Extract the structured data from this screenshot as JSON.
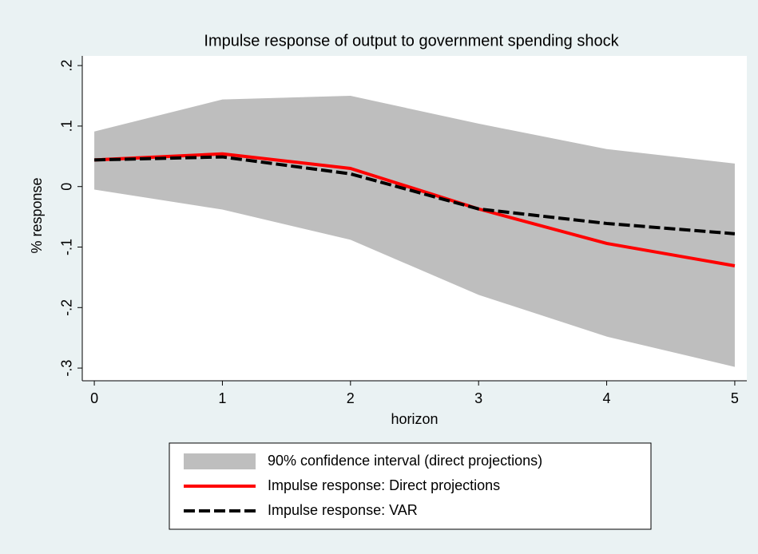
{
  "chart_data": {
    "type": "line",
    "title": "Impulse response of output to government spending shock",
    "x_label": "horizon",
    "y_label": "% response",
    "x": [
      0,
      1,
      2,
      3,
      4,
      5
    ],
    "series": [
      {
        "name": "90% confidence interval (direct projections)",
        "type": "band",
        "color": "#bebebe",
        "upper": [
          0.091,
          0.144,
          0.15,
          0.104,
          0.062,
          0.038
        ],
        "lower": [
          -0.005,
          -0.038,
          -0.088,
          -0.179,
          -0.248,
          -0.298
        ]
      },
      {
        "name": "Impulse response: Direct projections",
        "color": "#ff0000",
        "dash": false,
        "values": [
          0.044,
          0.054,
          0.03,
          -0.037,
          -0.094,
          -0.131
        ]
      },
      {
        "name": "Impulse response: VAR",
        "color": "#000000",
        "dash": true,
        "values": [
          0.044,
          0.049,
          0.021,
          -0.037,
          -0.061,
          -0.078
        ]
      }
    ],
    "xlim": [
      -0.094,
      5.094
    ],
    "ylim": [
      -0.321,
      0.216
    ],
    "xticks": [
      0,
      1,
      2,
      3,
      4,
      5
    ],
    "yticks": [
      {
        "value": 0.2,
        "label": ".2"
      },
      {
        "value": 0.1,
        "label": ".1"
      },
      0,
      {
        "value": -0.1,
        "label": "-.1"
      },
      {
        "value": -0.2,
        "label": "-.2"
      },
      {
        "value": -0.3,
        "label": "-.3"
      }
    ],
    "grid": false,
    "legend": "bottom"
  }
}
